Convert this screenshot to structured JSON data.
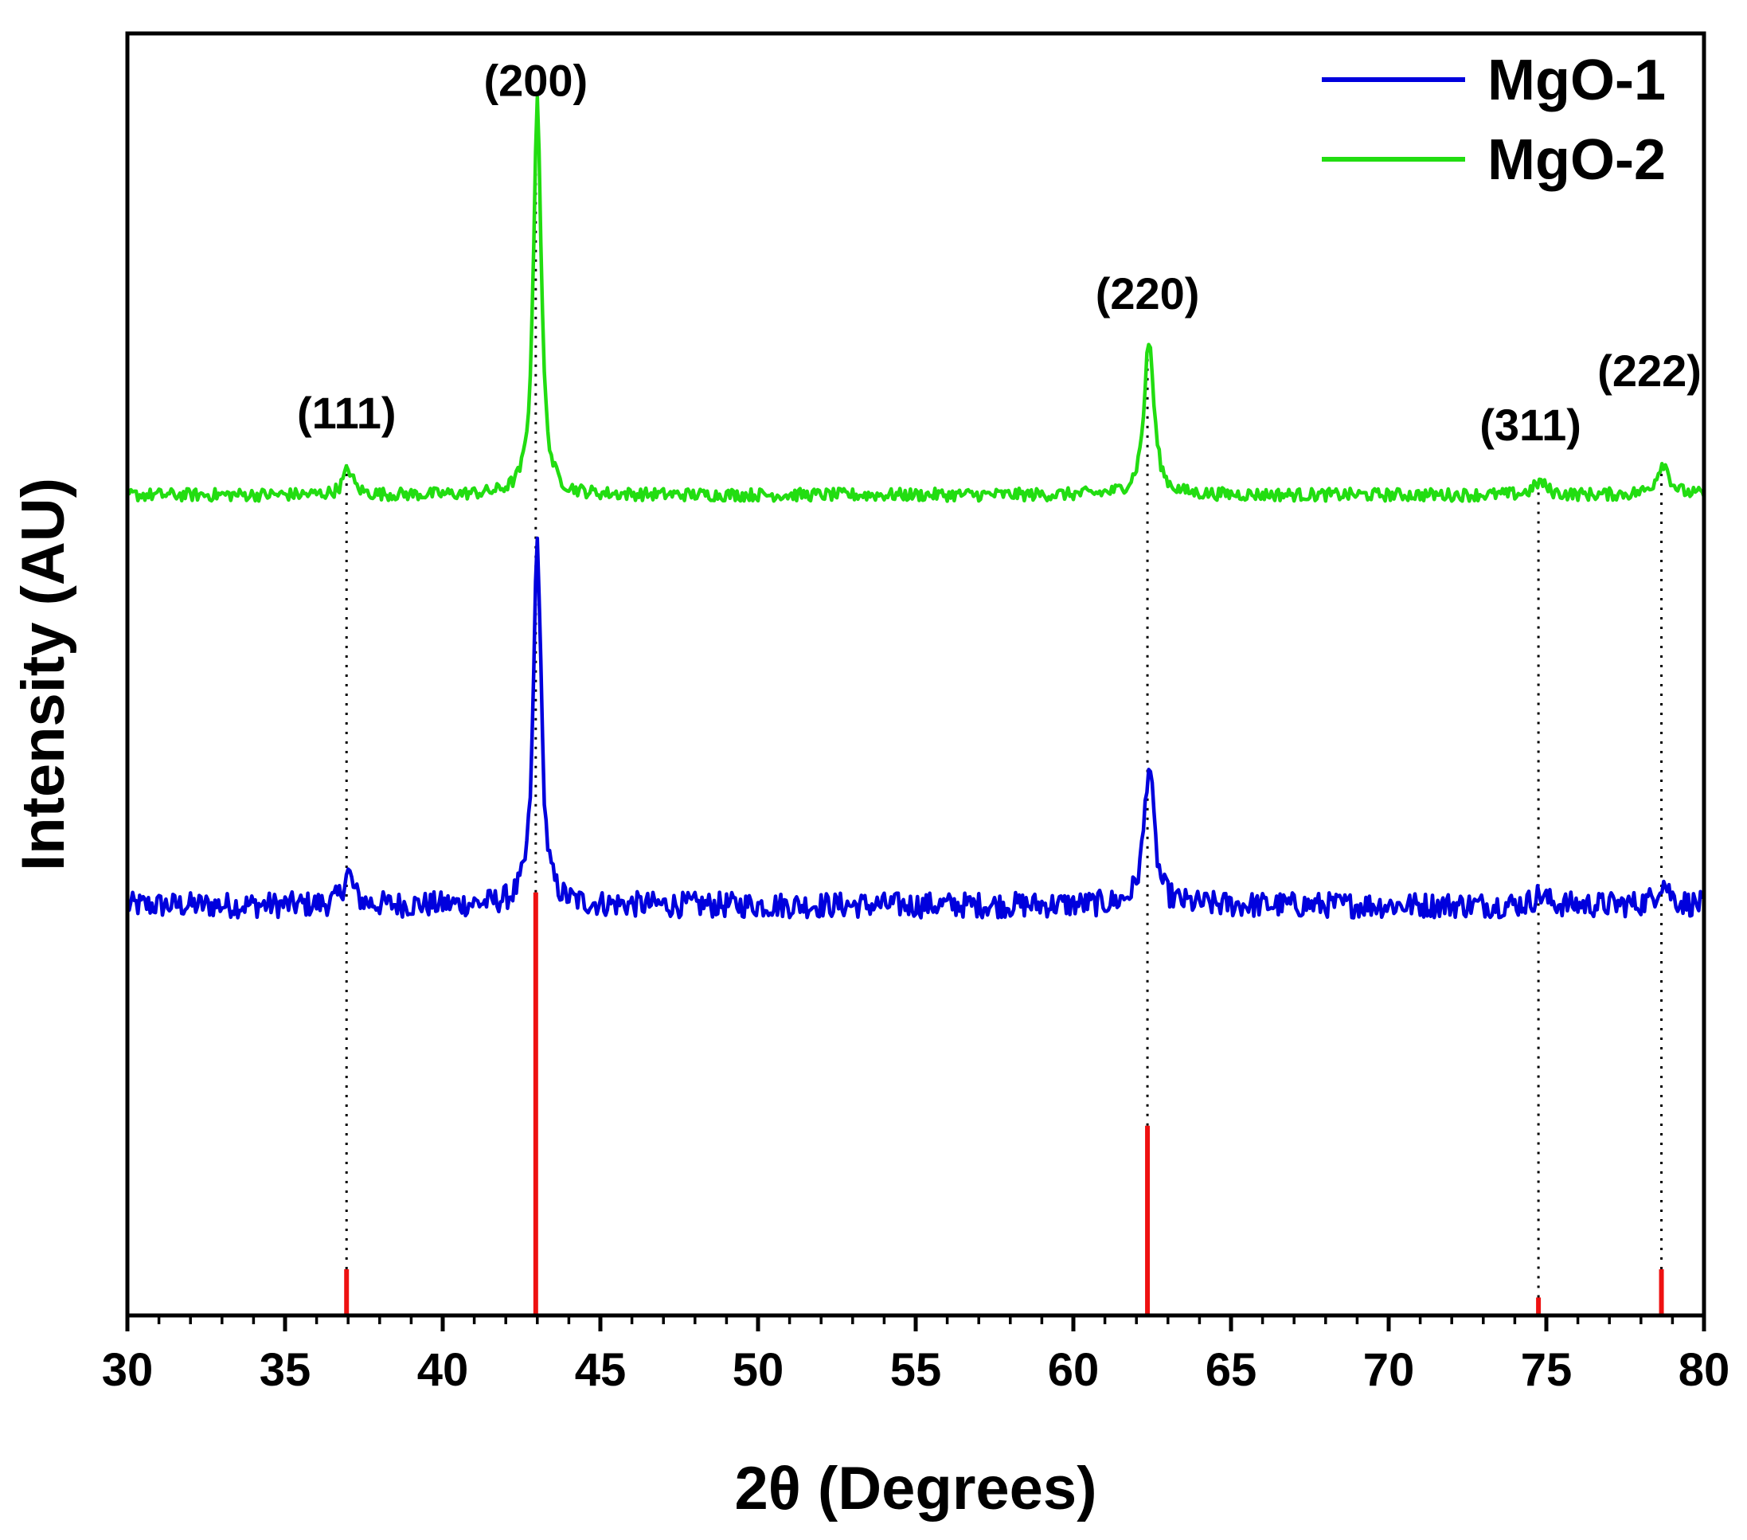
{
  "chart_data": {
    "type": "line",
    "title": "",
    "xlabel": "2θ (Degrees)",
    "ylabel": "Intensity (AU)",
    "xlim": [
      30,
      80
    ],
    "x_ticks": [
      "30",
      "35",
      "40",
      "45",
      "50",
      "55",
      "60",
      "65",
      "70",
      "75",
      "80"
    ],
    "y_ticks": [],
    "grid": false,
    "legend_position": "top-right",
    "series": [
      {
        "name": "MgO-1",
        "color": "#0000dd",
        "baseline": 0.32,
        "noise": 0.01,
        "peaks": [
          {
            "x": 37.0,
            "height": 0.025,
            "width": 0.28
          },
          {
            "x": 43.0,
            "height": 0.285,
            "width": 0.22
          },
          {
            "x": 62.4,
            "height": 0.11,
            "width": 0.28
          },
          {
            "x": 74.8,
            "height": 0.008,
            "width": 0.35
          },
          {
            "x": 78.7,
            "height": 0.018,
            "width": 0.35
          }
        ]
      },
      {
        "name": "MgO-2",
        "color": "#22dd11",
        "baseline": 0.64,
        "noise": 0.005,
        "peaks": [
          {
            "x": 37.0,
            "height": 0.02,
            "width": 0.28
          },
          {
            "x": 43.0,
            "height": 0.31,
            "width": 0.22
          },
          {
            "x": 62.4,
            "height": 0.12,
            "width": 0.28
          },
          {
            "x": 74.8,
            "height": 0.01,
            "width": 0.35
          },
          {
            "x": 78.7,
            "height": 0.025,
            "width": 0.35
          }
        ]
      }
    ],
    "reference": {
      "color": "#ee1111",
      "lines": [
        {
          "x": 36.95,
          "value": 0.036
        },
        {
          "x": 42.95,
          "value": 0.33
        },
        {
          "x": 62.35,
          "value": 0.148
        },
        {
          "x": 74.75,
          "value": 0.014
        },
        {
          "x": 78.65,
          "value": 0.036
        }
      ]
    },
    "annotations": [
      {
        "label": "(111)",
        "x": 36.95
      },
      {
        "label": "(200)",
        "x": 42.95
      },
      {
        "label": "(220)",
        "x": 62.35
      },
      {
        "label": "(311)",
        "x": 74.75
      },
      {
        "label": "(222)",
        "x": 78.65
      }
    ]
  }
}
